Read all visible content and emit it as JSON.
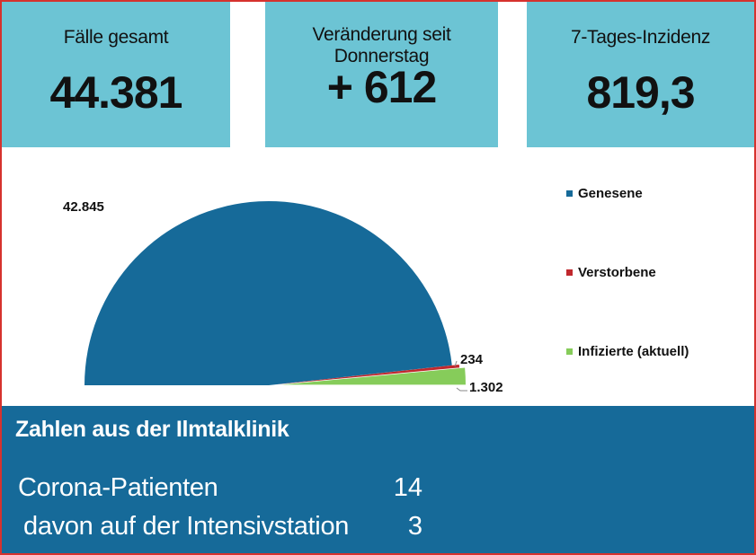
{
  "cards": [
    {
      "title": "Fälle gesamt",
      "value": "44.381"
    },
    {
      "title": "Veränderung seit Donnerstag",
      "value": "+ 612"
    },
    {
      "title": "7-Tages-Inzidenz",
      "value": "819,3"
    }
  ],
  "chart_data": {
    "type": "pie",
    "title": "",
    "categories": [
      "Genesene",
      "Verstorbene",
      "Infizierte (aktuell)"
    ],
    "values": [
      42845,
      234,
      1302
    ],
    "value_labels": [
      "42.845",
      "234",
      "1.302"
    ],
    "colors": [
      "#166a99",
      "#c0282d",
      "#86cc5a"
    ],
    "display": "half-pie (180°), slices exploded",
    "legend_position": "right"
  },
  "legend": {
    "items": [
      {
        "label": "Genesene",
        "color": "#166a99"
      },
      {
        "label": "Verstorbene",
        "color": "#c0282d"
      },
      {
        "label": "Infizierte (aktuell)",
        "color": "#86cc5a"
      }
    ]
  },
  "panel": {
    "title": "Zahlen aus der Ilmtalklinik",
    "rows": [
      {
        "label": "Corona-Patienten",
        "value": "14"
      },
      {
        "label": "davon auf der Intensivstation",
        "value": "3"
      }
    ]
  },
  "colors": {
    "card_bg": "#6cc4d4",
    "panel_bg": "#166a99",
    "border": "#d6322e"
  }
}
